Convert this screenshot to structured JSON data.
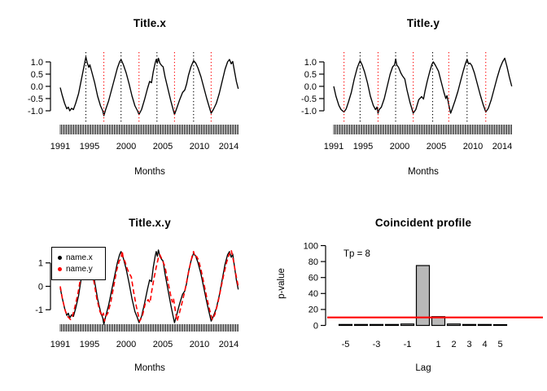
{
  "figure_background": "#ffffff",
  "colors": {
    "line": "#000000",
    "accent_red": "#ff0000",
    "bar_fill": "#b8b8b8",
    "bar_border": "#000000"
  },
  "chart_data": [
    {
      "type": "line",
      "title": "Title.x",
      "xlabel": "Months",
      "x_range": [
        1991,
        2015.3
      ],
      "x_tick_years": [
        1991,
        1995,
        2000,
        2005,
        2010,
        2014
      ],
      "x_tick_labels": [
        "1991",
        "1995",
        "2000",
        "2005",
        "2010",
        "2014"
      ],
      "y_ticks": [
        1.0,
        0.5,
        0.0,
        -0.5,
        -1.0
      ],
      "y_tick_labels": [
        "1.0",
        "0.5",
        "0.0",
        "-0.5",
        "-1.0"
      ],
      "rug": "monthly tick marks along x axis",
      "vlines": [
        {
          "x": 1994.5,
          "color": "#000000",
          "style": "dotted"
        },
        {
          "x": 1999.3,
          "color": "#000000",
          "style": "dotted"
        },
        {
          "x": 2004.2,
          "color": "#000000",
          "style": "dotted"
        },
        {
          "x": 2009.2,
          "color": "#000000",
          "style": "dotted"
        },
        {
          "x": 1996.95,
          "color": "#ff0000",
          "style": "dotted"
        },
        {
          "x": 2001.75,
          "color": "#ff0000",
          "style": "dotted"
        },
        {
          "x": 2006.6,
          "color": "#ff0000",
          "style": "dotted"
        },
        {
          "x": 2011.6,
          "color": "#ff0000",
          "style": "dotted"
        }
      ],
      "series": [
        {
          "name": "Title.x",
          "color": "#000000",
          "dash": "solid",
          "x": [
            1991.0,
            1991.25,
            1991.6,
            1991.9,
            1992.1,
            1992.3,
            1992.55,
            1992.8,
            1993.1,
            1993.5,
            1993.9,
            1994.1,
            1994.3,
            1994.5,
            1994.7,
            1994.9,
            1995.05,
            1995.3,
            1995.7,
            1996.1,
            1996.5,
            1996.8,
            1996.95,
            1997.2,
            1997.6,
            1998.0,
            1998.4,
            1998.8,
            1999.1,
            1999.3,
            1999.6,
            2000.0,
            2000.4,
            2000.8,
            2001.2,
            2001.55,
            2001.75,
            2002.1,
            2002.5,
            2002.9,
            2003.2,
            2003.45,
            2003.7,
            2003.95,
            2004.1,
            2004.25,
            2004.4,
            2004.6,
            2004.85,
            2005.05,
            2005.3,
            2005.7,
            2006.1,
            2006.45,
            2006.6,
            2006.9,
            2007.3,
            2007.7,
            2008.0,
            2008.25,
            2008.5,
            2008.85,
            2009.2,
            2009.5,
            2009.8,
            2010.2,
            2010.6,
            2011.0,
            2011.35,
            2011.6,
            2011.9,
            2012.3,
            2012.7,
            2013.1,
            2013.5,
            2013.85,
            2014.1,
            2014.35,
            2014.55,
            2014.8,
            2015.05,
            2015.3
          ],
          "y": [
            -0.05,
            -0.35,
            -0.7,
            -0.92,
            -0.85,
            -1.0,
            -0.9,
            -0.95,
            -0.7,
            -0.3,
            0.3,
            0.6,
            0.9,
            1.2,
            0.95,
            0.78,
            0.88,
            0.6,
            0.15,
            -0.4,
            -0.8,
            -1.0,
            -1.2,
            -0.95,
            -0.6,
            -0.15,
            0.3,
            0.75,
            1.0,
            1.1,
            0.9,
            0.55,
            0.1,
            -0.4,
            -0.8,
            -1.0,
            -1.15,
            -0.95,
            -0.55,
            -0.1,
            0.2,
            0.15,
            0.6,
            0.95,
            1.1,
            0.95,
            1.15,
            0.95,
            0.85,
            0.8,
            0.4,
            -0.1,
            -0.6,
            -1.0,
            -1.15,
            -0.9,
            -0.55,
            -0.25,
            -0.15,
            0.1,
            0.45,
            0.8,
            1.05,
            0.95,
            0.75,
            0.4,
            -0.05,
            -0.5,
            -0.85,
            -1.1,
            -0.95,
            -0.7,
            -0.3,
            0.2,
            0.7,
            1.0,
            1.1,
            0.92,
            1.02,
            0.6,
            0.2,
            -0.1
          ]
        }
      ]
    },
    {
      "type": "line",
      "title": "Title.y",
      "xlabel": "Months",
      "x_range": [
        1991,
        2015.3
      ],
      "x_tick_years": [
        1991,
        1995,
        2000,
        2005,
        2010,
        2014
      ],
      "x_tick_labels": [
        "1991",
        "1995",
        "2000",
        "2005",
        "2010",
        "2014"
      ],
      "y_ticks": [
        1.0,
        0.5,
        0.0,
        -0.5,
        -1.0
      ],
      "y_tick_labels": [
        "1.0",
        "0.5",
        "0.0",
        "-0.5",
        "-1.0"
      ],
      "rug": "monthly tick marks along x axis",
      "vlines": [
        {
          "x": 1994.6,
          "color": "#000000",
          "style": "dotted"
        },
        {
          "x": 1999.45,
          "color": "#000000",
          "style": "dotted"
        },
        {
          "x": 2004.5,
          "color": "#000000",
          "style": "dotted"
        },
        {
          "x": 2009.2,
          "color": "#000000",
          "style": "dotted"
        },
        {
          "x": 1992.4,
          "color": "#ff0000",
          "style": "dotted"
        },
        {
          "x": 1997.05,
          "color": "#ff0000",
          "style": "dotted"
        },
        {
          "x": 2001.85,
          "color": "#ff0000",
          "style": "dotted"
        },
        {
          "x": 2006.7,
          "color": "#ff0000",
          "style": "dotted"
        },
        {
          "x": 2011.75,
          "color": "#ff0000",
          "style": "dotted"
        }
      ],
      "series": [
        {
          "name": "Title.y",
          "color": "#000000",
          "dash": "solid",
          "x": [
            1991.0,
            1991.3,
            1991.7,
            1992.0,
            1992.2,
            1992.4,
            1992.7,
            1993.0,
            1993.4,
            1993.8,
            1994.2,
            1994.45,
            1994.6,
            1994.85,
            1995.2,
            1995.6,
            1996.0,
            1996.4,
            1996.7,
            1996.9,
            1997.05,
            1997.2,
            1997.5,
            1997.9,
            1998.3,
            1998.7,
            1999.05,
            1999.3,
            1999.45,
            1999.6,
            1999.85,
            2000.15,
            2000.4,
            2000.7,
            2001.0,
            2001.4,
            2001.7,
            2001.85,
            2002.2,
            2002.6,
            2003.0,
            2003.25,
            2003.45,
            2003.75,
            2004.1,
            2004.4,
            2004.6,
            2004.9,
            2005.3,
            2005.7,
            2006.05,
            2006.3,
            2006.45,
            2006.7,
            2006.95,
            2007.2,
            2007.55,
            2007.95,
            2008.35,
            2008.7,
            2009.0,
            2009.2,
            2009.4,
            2009.6,
            2009.85,
            2010.2,
            2010.6,
            2011.0,
            2011.4,
            2011.75,
            2012.1,
            2012.5,
            2012.9,
            2013.3,
            2013.7,
            2014.05,
            2014.35,
            2014.65,
            2014.95,
            2015.3
          ],
          "y": [
            0.0,
            -0.4,
            -0.78,
            -0.95,
            -1.0,
            -1.05,
            -0.92,
            -0.65,
            -0.25,
            0.3,
            0.75,
            0.95,
            1.05,
            0.9,
            0.6,
            0.15,
            -0.4,
            -0.78,
            -0.95,
            -0.85,
            -1.1,
            -0.95,
            -0.85,
            -0.5,
            0.0,
            0.5,
            0.8,
            0.88,
            1.12,
            0.88,
            0.78,
            0.55,
            0.42,
            0.3,
            -0.15,
            -0.65,
            -0.95,
            -1.1,
            -0.95,
            -0.55,
            -0.42,
            -0.52,
            -0.2,
            0.2,
            0.6,
            0.9,
            1.0,
            0.85,
            0.62,
            0.15,
            -0.25,
            -0.5,
            -0.38,
            -0.75,
            -1.1,
            -0.9,
            -0.6,
            -0.2,
            0.25,
            0.65,
            0.95,
            1.1,
            0.92,
            0.95,
            0.85,
            0.55,
            0.1,
            -0.35,
            -0.75,
            -1.05,
            -0.9,
            -0.55,
            -0.1,
            0.35,
            0.75,
            1.0,
            1.15,
            0.8,
            0.4,
            0.0
          ]
        }
      ]
    },
    {
      "type": "line",
      "title": "Title.x.y",
      "xlabel": "Months",
      "x_range": [
        1991,
        2015.3
      ],
      "x_tick_years": [
        1991,
        1995,
        2000,
        2005,
        2010,
        2014
      ],
      "x_tick_labels": [
        "1991",
        "1995",
        "2000",
        "2005",
        "2010",
        "2014"
      ],
      "y_ticks": [
        1,
        0,
        -1
      ],
      "y_tick_labels": [
        "1",
        "0",
        "-1"
      ],
      "rug": "monthly tick marks along x axis",
      "legend": [
        {
          "label": "name.x",
          "color": "#000000"
        },
        {
          "label": "name.y",
          "color": "#ff0000"
        }
      ],
      "series": [
        {
          "name": "name.x",
          "color": "#000000",
          "dash": "solid",
          "source_chart": 0,
          "source_series": 0,
          "y_scale": 1.35
        },
        {
          "name": "name.y",
          "color": "#ff0000",
          "dash": "dashed",
          "source_chart": 1,
          "source_series": 0,
          "y_scale": 1.35
        }
      ]
    },
    {
      "type": "bar",
      "title": "Coincident profile",
      "xlabel": "Lag",
      "ylabel": "p-value",
      "annotation": "Tp = 8",
      "categories": [
        -5,
        -4,
        -3,
        -2,
        -1,
        0,
        1,
        2,
        3,
        4,
        5
      ],
      "values": [
        1.2,
        1.2,
        1.2,
        1.2,
        1.8,
        75,
        11,
        1.8,
        1.2,
        1.2,
        1.0
      ],
      "bar_fill": "#b8b8b8",
      "bar_border": "#000000",
      "threshold": {
        "value": 10,
        "color": "#ff0000"
      },
      "ylim": [
        0,
        100
      ],
      "y_ticks": [
        0,
        20,
        40,
        60,
        80,
        100
      ],
      "y_tick_labels": [
        "0",
        "20",
        "40",
        "60",
        "80",
        "100"
      ],
      "x_tick_positions": [
        -5,
        -3,
        -1,
        1,
        2,
        3,
        4,
        5
      ],
      "x_tick_labels": [
        "-5",
        "-3",
        "-1",
        "1",
        "2",
        "3",
        "4",
        "5"
      ]
    }
  ]
}
